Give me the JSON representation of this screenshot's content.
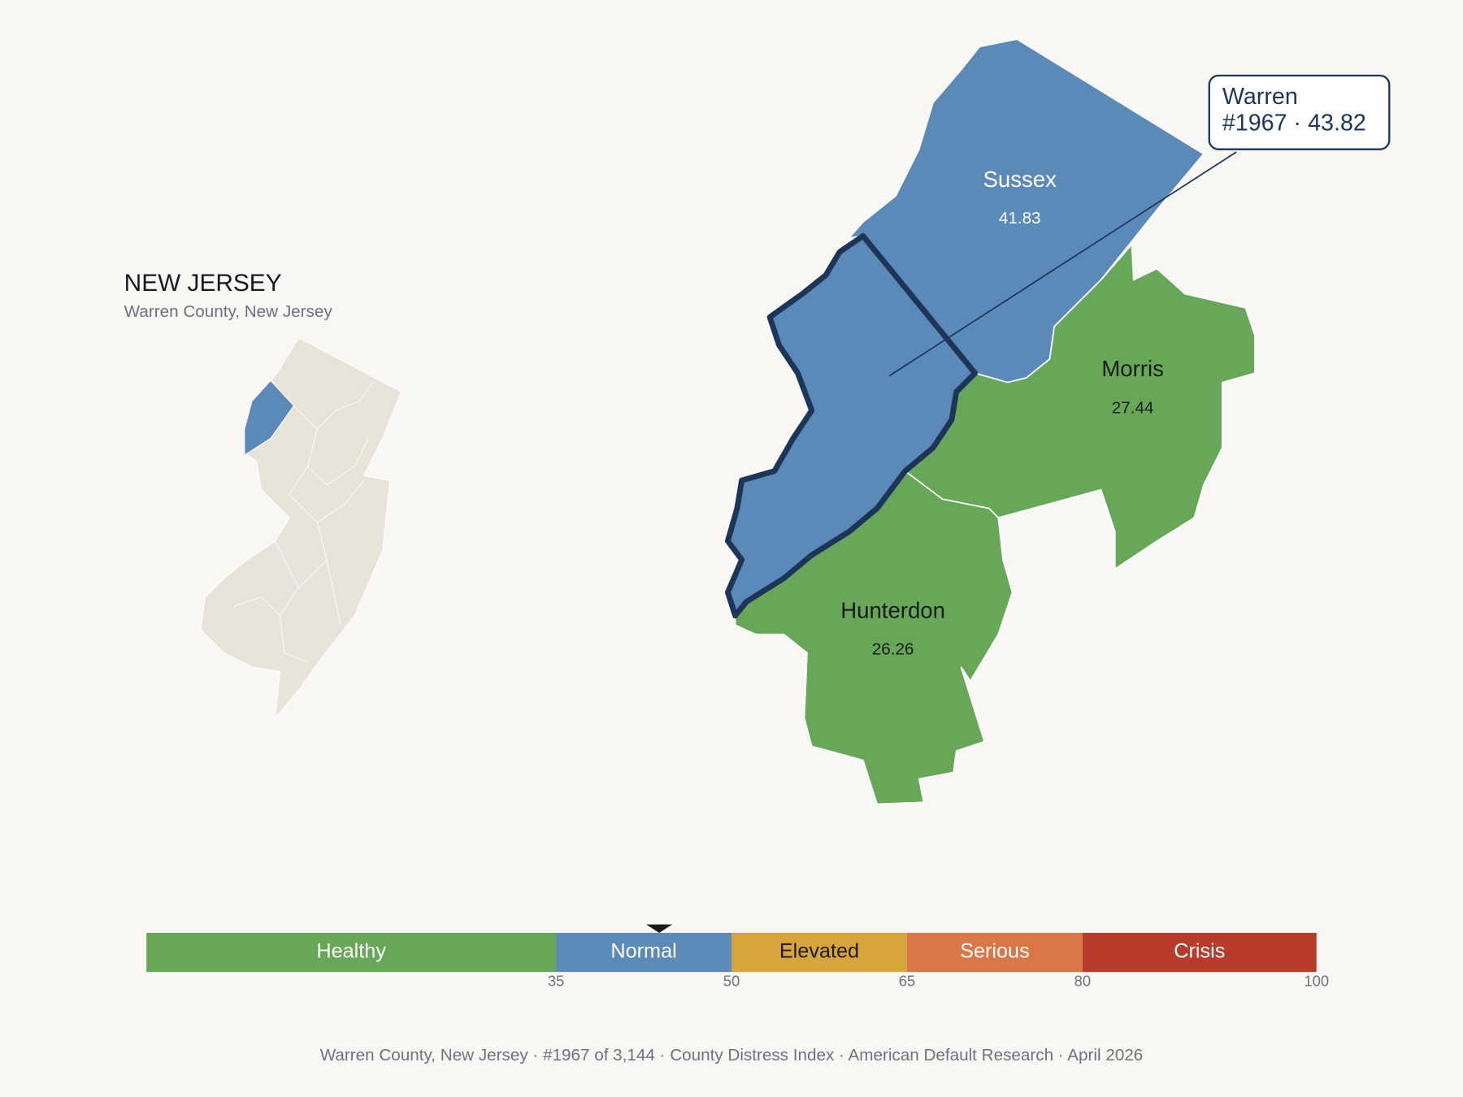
{
  "header": {
    "title": "NEW JERSEY",
    "subtitle": "Warren County, New Jersey"
  },
  "counties": [
    {
      "name": "Sussex",
      "score": 41.83,
      "color": "#5b89b8",
      "label_color": "#ffffff"
    },
    {
      "name": "Morris",
      "score": 27.44,
      "color": "#66a758",
      "label_color": "#1a1a1a"
    },
    {
      "name": "Hunterdon",
      "score": 26.26,
      "color": "#66a758",
      "label_color": "#1a1a1a"
    }
  ],
  "focus": {
    "name": "Warren",
    "detail": "#1967 · 43.82",
    "color": "#5b89b8",
    "outline": "#1d3557"
  },
  "inset": {
    "fill": "#e8e3d9",
    "highlight": "#5b89b8"
  },
  "scale": {
    "xlim": [
      0,
      100
    ],
    "ticks": [
      35,
      50,
      65,
      80,
      100
    ],
    "marker": 43.82,
    "segments": [
      {
        "label": "Healthy",
        "color": "#66a758",
        "text_color": "#ffffff"
      },
      {
        "label": "Normal",
        "color": "#5b89b8",
        "text_color": "#ffffff"
      },
      {
        "label": "Elevated",
        "color": "#d6a43a",
        "text_color": "#1a1a1a"
      },
      {
        "label": "Serious",
        "color": "#db7747",
        "text_color": "#ffffff"
      },
      {
        "label": "Crisis",
        "color": "#b83c2b",
        "text_color": "#ffffff"
      }
    ]
  },
  "footer": "Warren County, New Jersey  ·  #1967 of 3,144  ·  County Distress Index  ·  American Default Research  ·  April 2026"
}
